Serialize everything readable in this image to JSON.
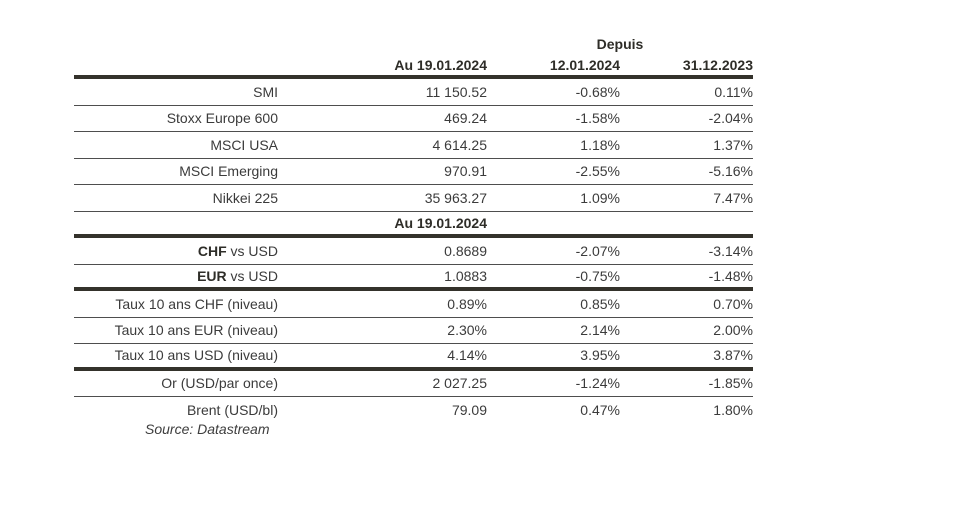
{
  "colors": {
    "text": "#3b3b3b",
    "heading": "#2e2d28",
    "rule_thick": "#34322b",
    "rule_thin": "#4e4e4e"
  },
  "header": {
    "depuis": "Depuis",
    "columns": [
      "",
      "Au 19.01.2024",
      "12.01.2024",
      "31.12.2023"
    ]
  },
  "rows": [
    {
      "label_bold": "",
      "label": "SMI",
      "value": "11 150.52",
      "change1": "-0.68%",
      "change2": "0.11%",
      "border": "thin",
      "type": "data"
    },
    {
      "label_bold": "",
      "label": "Stoxx Europe 600",
      "value": "469.24",
      "change1": "-1.58%",
      "change2": "-2.04%",
      "border": "thin",
      "type": "data"
    },
    {
      "label_bold": "",
      "label": "MSCI USA",
      "value": "4 614.25",
      "change1": "1.18%",
      "change2": "1.37%",
      "border": "thin",
      "type": "data"
    },
    {
      "label_bold": "",
      "label": "MSCI Emerging",
      "value": "970.91",
      "change1": "-2.55%",
      "change2": "-5.16%",
      "border": "thin",
      "type": "data"
    },
    {
      "label_bold": "",
      "label": "Nikkei 225",
      "value": "35 963.27",
      "change1": "1.09%",
      "change2": "7.47%",
      "border": "thin",
      "type": "data"
    },
    {
      "label_bold": "",
      "label": "",
      "value": "Au 19.01.2024",
      "change1": "",
      "change2": "",
      "border": "thick",
      "type": "subheader"
    },
    {
      "label_bold": "CHF",
      "label": " vs USD",
      "value": "0.8689",
      "change1": "-2.07%",
      "change2": "-3.14%",
      "border": "thin",
      "type": "data"
    },
    {
      "label_bold": "EUR",
      "label": " vs USD",
      "value": "1.0883",
      "change1": "-0.75%",
      "change2": "-1.48%",
      "border": "thick",
      "type": "data"
    },
    {
      "label_bold": "",
      "label": "Taux 10 ans CHF (niveau)",
      "value": "0.89%",
      "change1": "0.85%",
      "change2": "0.70%",
      "border": "thin",
      "type": "data"
    },
    {
      "label_bold": "",
      "label": "Taux 10 ans EUR (niveau)",
      "value": "2.30%",
      "change1": "2.14%",
      "change2": "2.00%",
      "border": "thin",
      "type": "data"
    },
    {
      "label_bold": "",
      "label": "Taux 10 ans USD (niveau)",
      "value": "4.14%",
      "change1": "3.95%",
      "change2": "3.87%",
      "border": "thick",
      "type": "data"
    },
    {
      "label_bold": "",
      "label": "Or (USD/par once)",
      "value": "2 027.25",
      "change1": "-1.24%",
      "change2": "-1.85%",
      "border": "thin",
      "type": "data"
    },
    {
      "label_bold": "",
      "label": "Brent (USD/bl)",
      "value": "79.09",
      "change1": "0.47%",
      "change2": "1.80%",
      "border": "none",
      "type": "data"
    }
  ],
  "source": "Source: Datastream"
}
